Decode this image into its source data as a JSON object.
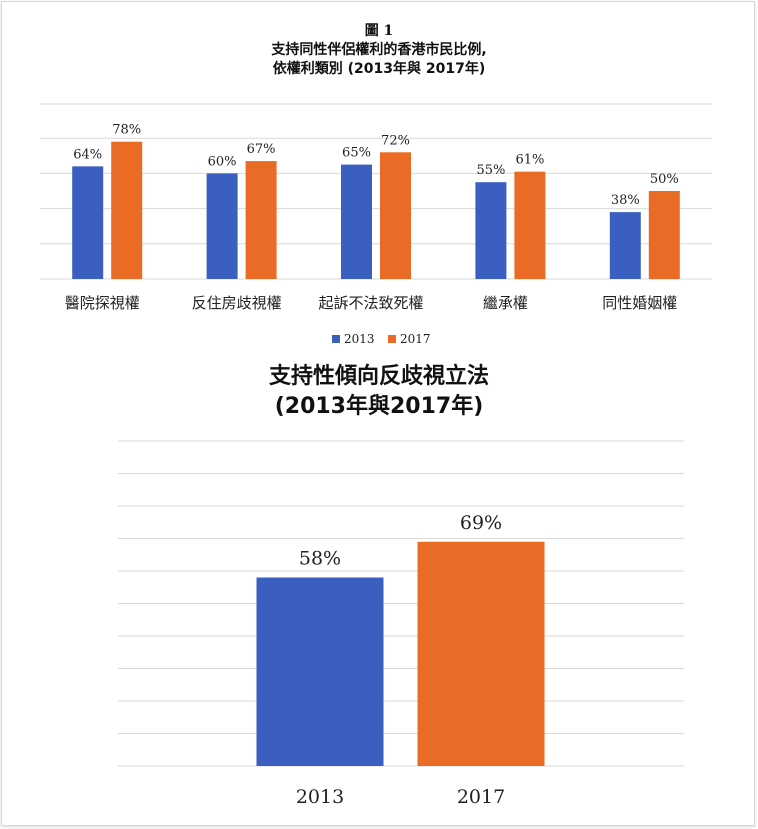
{
  "colors": {
    "s2013": "#3b5fc0",
    "s2017": "#ea6b25",
    "grid": "#d9d9d9"
  },
  "chart_data": [
    {
      "type": "bar",
      "figure_label": "圖 1",
      "title_line1": "支持同性伴侶權利的香港市民比例,",
      "title_line2": "依權利類別 (2013年與 2017年)",
      "categories": [
        "醫院探視權",
        "反住房歧視權",
        "起訴不法致死權",
        "繼承權",
        "同性婚姻權"
      ],
      "series": [
        {
          "name": "2013",
          "values": [
            64,
            60,
            65,
            55,
            38
          ],
          "labels": [
            "64%",
            "60%",
            "65%",
            "55%",
            "38%"
          ]
        },
        {
          "name": "2017",
          "values": [
            78,
            67,
            72,
            61,
            50
          ],
          "labels": [
            "78%",
            "67%",
            "72%",
            "61%",
            "50%"
          ]
        }
      ],
      "ylim": [
        0,
        100
      ],
      "grid": true,
      "legend": "bottom-center"
    },
    {
      "type": "bar",
      "title_line1": "支持性傾向反歧視立法",
      "title_line2": "(2013年與2017年)",
      "categories": [
        "2013",
        "2017"
      ],
      "values": [
        58,
        69
      ],
      "labels": [
        "58%",
        "69%"
      ],
      "ylim": [
        0,
        100
      ],
      "grid": true
    }
  ]
}
